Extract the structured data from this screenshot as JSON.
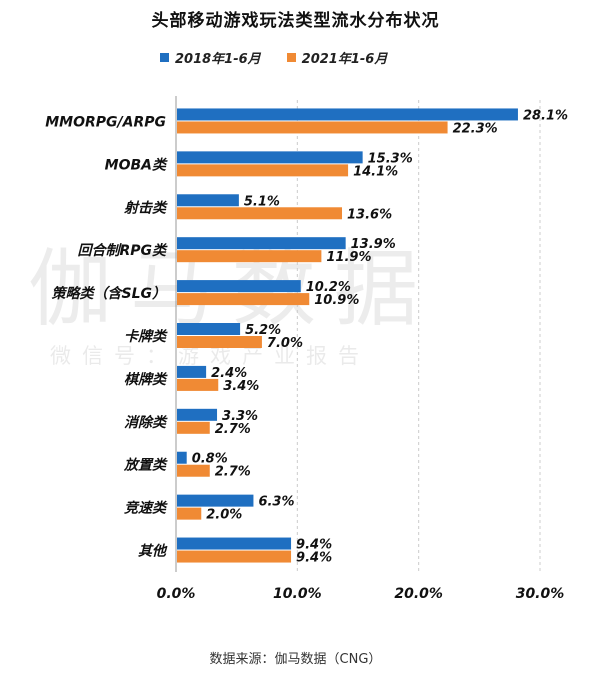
{
  "title": "头部移动游戏玩法类型流水分布状况",
  "source": "数据来源：伽马数据（CNG）",
  "watermark": {
    "main": "伽马数据",
    "sub": "微信号：游戏产业报告"
  },
  "colors": {
    "series1": "#1f6fc1",
    "series2": "#f08a34",
    "grid": "#cccccc",
    "axis": "#999999"
  },
  "chart_data": {
    "type": "bar",
    "orientation": "horizontal",
    "categories": [
      "MMORPG/ARPG",
      "MOBA类",
      "射击类",
      "回合制RPG类",
      "策略类（含SLG）",
      "卡牌类",
      "棋牌类",
      "消除类",
      "放置类",
      "竞速类",
      "其他"
    ],
    "series": [
      {
        "name": "2018年1-6月",
        "values": [
          28.1,
          15.3,
          5.1,
          13.9,
          10.2,
          5.2,
          2.4,
          3.3,
          0.8,
          6.3,
          9.4
        ],
        "labels": [
          "28.1%",
          "15.3%",
          "5.1%",
          "13.9%",
          "10.2%",
          "5.2%",
          "2.4%",
          "3.3%",
          "0.8%",
          "6.3%",
          "9.4%"
        ]
      },
      {
        "name": "2021年1-6月",
        "values": [
          22.3,
          14.1,
          13.6,
          11.9,
          10.9,
          7.0,
          3.4,
          2.7,
          2.7,
          2.0,
          9.4
        ],
        "labels": [
          "22.3%",
          "14.1%",
          "13.6%",
          "11.9%",
          "10.9%",
          "7.0%",
          "3.4%",
          "2.7%",
          "2.7%",
          "2.0%",
          "9.4%"
        ]
      }
    ],
    "xlim": [
      0,
      30
    ],
    "xticks": [
      0,
      10,
      20,
      30
    ],
    "xtick_labels": [
      "0.0%",
      "10.0%",
      "20.0%",
      "30.0%"
    ],
    "xlabel": "",
    "ylabel": "",
    "grid": "vertical dashed",
    "legend_position": "top"
  }
}
